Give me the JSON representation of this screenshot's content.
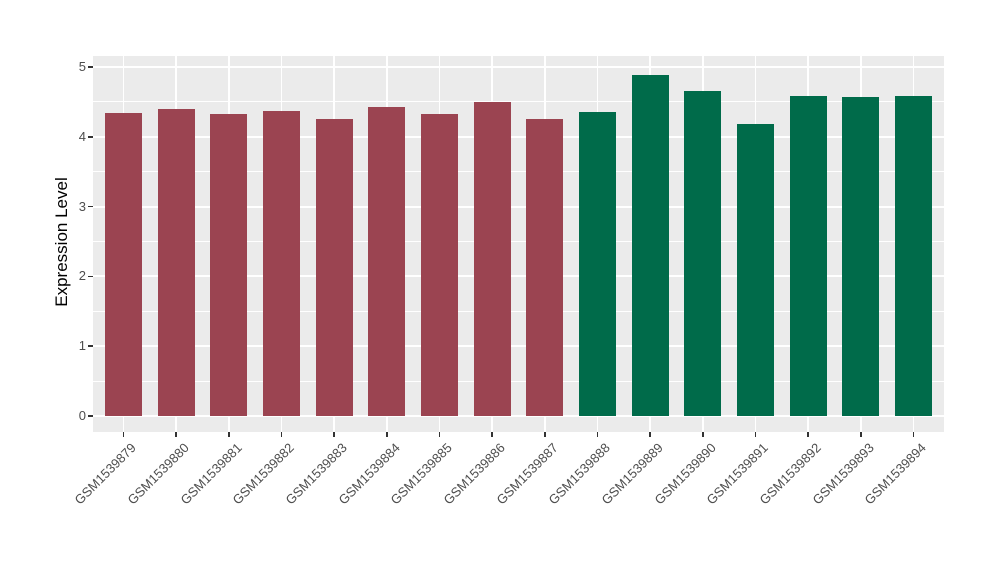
{
  "figure": {
    "background": "#FFFFFF",
    "panel_background": "#EBEBEB",
    "grid_color": "#FFFFFF",
    "tick_mark_color": "#333333",
    "tick_label_color": "#4D4D4D",
    "axis_title_color": "#000000"
  },
  "chart_data": {
    "type": "bar",
    "title": "",
    "xlabel": "",
    "ylabel": "Expression Level",
    "ylim": [
      0,
      5
    ],
    "yticks": [
      0,
      1,
      2,
      3,
      4,
      5
    ],
    "minor_grid_step": 0.5,
    "grid": "major and minor horizontal, major vertical at category centers",
    "legend_position": "none",
    "categories": [
      "GSM1539879",
      "GSM1539880",
      "GSM1539881",
      "GSM1539882",
      "GSM1539883",
      "GSM1539884",
      "GSM1539885",
      "GSM1539886",
      "GSM1539887",
      "GSM1539888",
      "GSM1539889",
      "GSM1539890",
      "GSM1539891",
      "GSM1539892",
      "GSM1539893",
      "GSM1539894"
    ],
    "values": [
      4.34,
      4.4,
      4.33,
      4.37,
      4.26,
      4.43,
      4.33,
      4.5,
      4.25,
      4.35,
      4.89,
      4.66,
      4.18,
      4.59,
      4.57,
      4.58
    ],
    "groups": [
      "group1",
      "group1",
      "group1",
      "group1",
      "group1",
      "group1",
      "group1",
      "group1",
      "group1",
      "group2",
      "group2",
      "group2",
      "group2",
      "group2",
      "group2",
      "group2"
    ],
    "group_colors": {
      "group1": "#9B4451",
      "group2": "#006B4A"
    }
  }
}
